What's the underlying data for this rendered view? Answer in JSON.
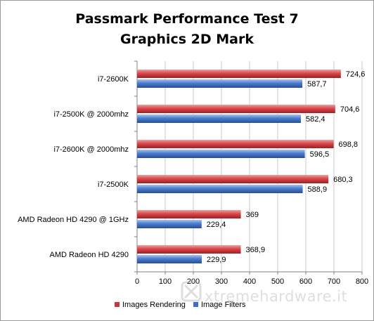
{
  "chart_data": {
    "type": "bar",
    "orientation": "horizontal",
    "title": "Passmark Performance Test 7",
    "subtitle": "Graphics 2D Mark",
    "categories": [
      "i7-2600K",
      "i7-2500K @ 2000mhz",
      "i7-2600K @ 2000mhz",
      "i7-2500K",
      "AMD Radeon  HD 4290 @ 1GHz",
      "AMD Radeon  HD 4290"
    ],
    "series": [
      {
        "name": "Images Rendering",
        "color": "#c8353a",
        "values": [
          724.6,
          704.6,
          698.8,
          680.3,
          369,
          368.9
        ],
        "labels": [
          "724,6",
          "704,6",
          "698,8",
          "680,3",
          "369",
          "368,9"
        ]
      },
      {
        "name": "Image Filters",
        "color": "#3c6fc1",
        "values": [
          587.7,
          582.4,
          596.5,
          588.9,
          229.4,
          229.9
        ],
        "labels": [
          "587,7",
          "582,4",
          "596,5",
          "588,9",
          "229,4",
          "229,9"
        ]
      }
    ],
    "xlim": [
      0,
      800
    ],
    "xticks": [
      "0",
      "100",
      "200",
      "300",
      "400",
      "500",
      "600",
      "700",
      "800"
    ],
    "grid": true,
    "legend_position": "bottom"
  },
  "watermark": {
    "text": "xtremehardware.it"
  }
}
